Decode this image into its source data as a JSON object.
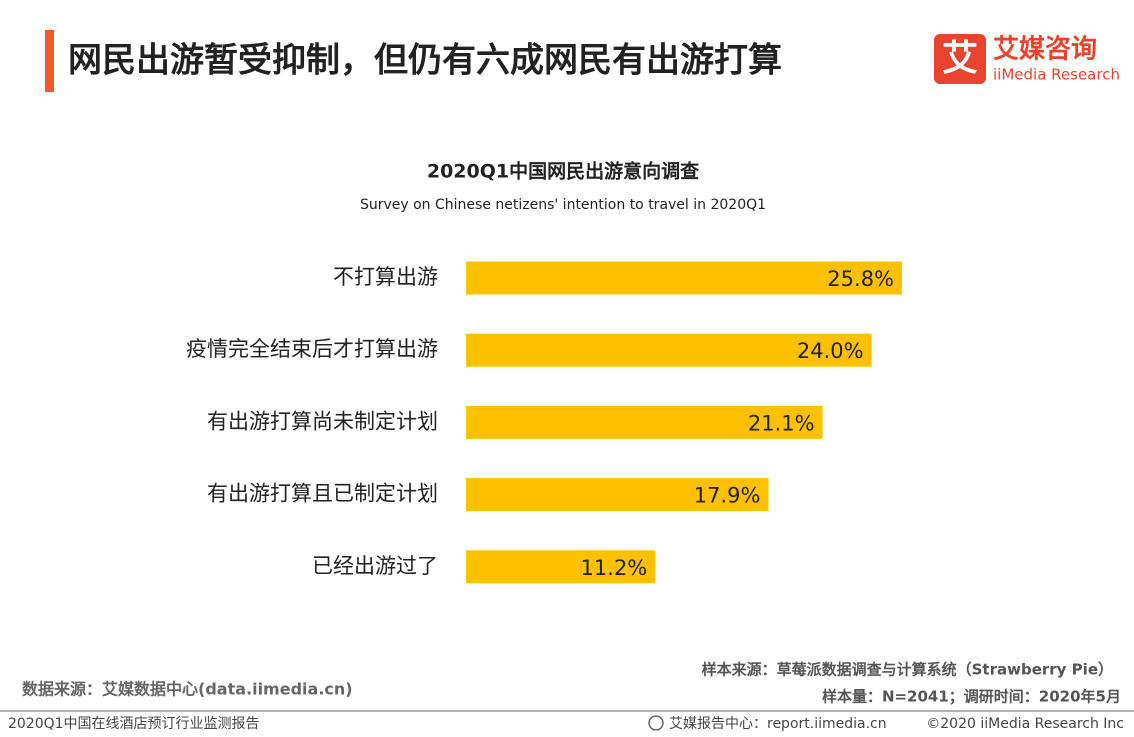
{
  "header": {
    "title": "网民出游暂受抑制，但仍有六成网民有出游打算",
    "logo_mark": "艾",
    "logo_name": "艾媒咨询",
    "logo_en": "iiMedia Research"
  },
  "chart_data": {
    "type": "bar",
    "orientation": "horizontal",
    "title": "2020Q1中国网民出游意向调查",
    "subtitle": "Survey on Chinese netizens' intention to travel in 2020Q1",
    "categories": [
      "不打算出游",
      "疫情完全结束后才打算出游",
      "有出游打算尚未制定计划",
      "有出游打算且已制定计划",
      "已经出游过了"
    ],
    "values": [
      25.8,
      24.0,
      21.1,
      17.9,
      11.2
    ],
    "value_labels": [
      "25.8%",
      "24.0%",
      "21.1%",
      "17.9%",
      "11.2%"
    ],
    "color": "#ffc000"
  },
  "footer": {
    "data_source": "数据来源：艾媒数据中心(data.iimedia.cn)",
    "sample_source": "样本来源：草莓派数据调查与计算系统（Strawberry Pie）",
    "sample_size": "样本量：N=2041；调研时间：2020年5月",
    "report_name": "2020Q1中国在线酒店预订行业监测报告",
    "report_center": "艾媒报告中心：report.iimedia.cn",
    "copyright": "©2020  iiMedia Research  Inc"
  }
}
